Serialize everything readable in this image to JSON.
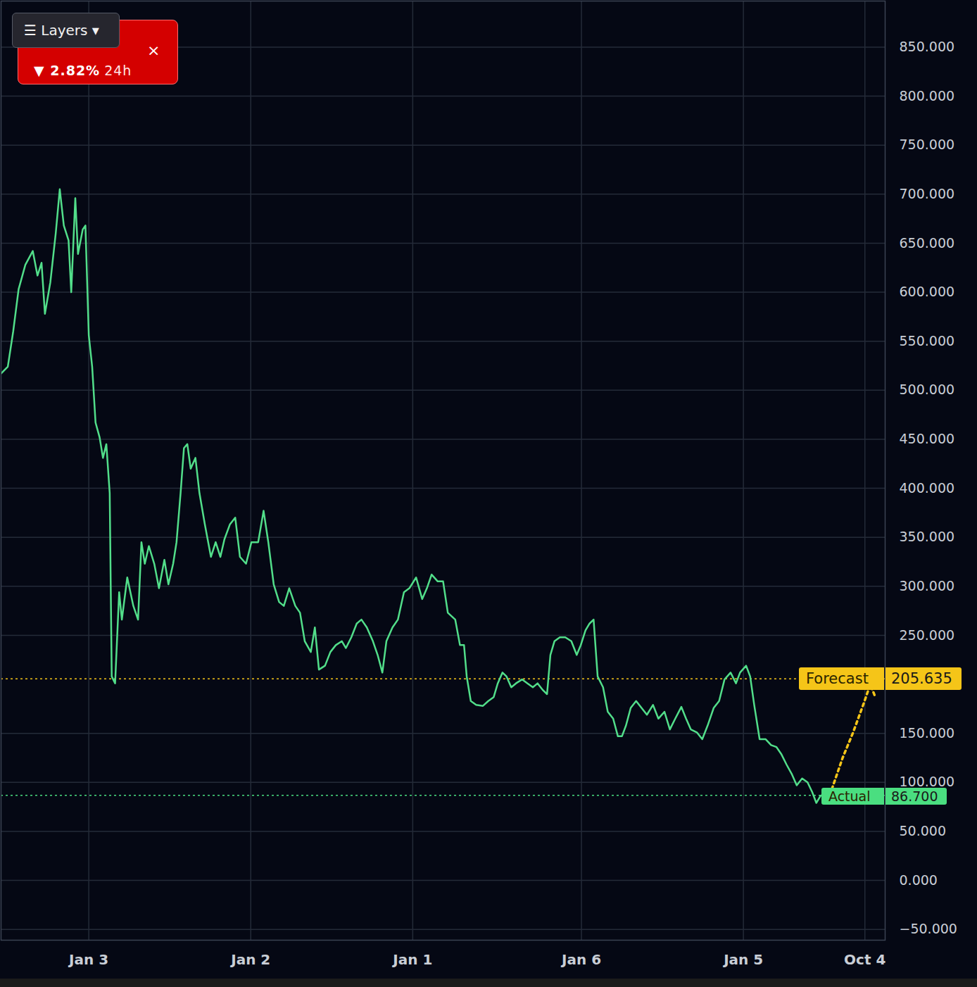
{
  "chart_data": {
    "type": "line",
    "xlim": [
      -13,
      118
    ],
    "xticks": [
      {
        "value": 0,
        "label": "Jan 3"
      },
      {
        "value": 24,
        "label": "Jan 2"
      },
      {
        "value": 48,
        "label": "Jan 1"
      },
      {
        "value": 73,
        "label": "Jan 6"
      },
      {
        "value": 97,
        "label": "Jan 5"
      },
      {
        "value": 115,
        "label": "Oct 4"
      }
    ],
    "ylim": [
      -61,
      897
    ],
    "yticks": [
      {
        "value": -50,
        "label": "−50.000"
      },
      {
        "value": 0,
        "label": "0.000"
      },
      {
        "value": 50,
        "label": "50.000"
      },
      {
        "value": 100,
        "label": "100.000"
      },
      {
        "value": 150,
        "label": "150.000"
      },
      {
        "value": 250,
        "label": "250.000"
      },
      {
        "value": 300,
        "label": "300.000"
      },
      {
        "value": 350,
        "label": "350.000"
      },
      {
        "value": 400,
        "label": "400.000"
      },
      {
        "value": 450,
        "label": "450.000"
      },
      {
        "value": 500,
        "label": "500.000"
      },
      {
        "value": 550,
        "label": "550.000"
      },
      {
        "value": 600,
        "label": "600.000"
      },
      {
        "value": 650,
        "label": "650.000"
      },
      {
        "value": 700,
        "label": "700.000"
      },
      {
        "value": 750,
        "label": "750.000"
      },
      {
        "value": 800,
        "label": "800.000"
      },
      {
        "value": 850,
        "label": "850.000"
      }
    ],
    "grid": true,
    "series": [
      {
        "name": "Actual",
        "color": "#52de8a",
        "line_style": "solid",
        "x": [
          -13.0,
          -12.0,
          -11.2,
          -10.4,
          -9.4,
          -8.3,
          -7.6,
          -7.0,
          -6.5,
          -5.7,
          -4.9,
          -4.3,
          -3.7,
          -3.0,
          -2.6,
          -2.0,
          -1.6,
          -0.9,
          -0.5,
          0,
          0.5,
          1.0,
          1.6,
          2.1,
          2.6,
          3.1,
          3.4,
          3.9,
          4.5,
          4.9,
          5.7,
          6.6,
          7.3,
          7.8,
          8.3,
          8.9,
          9.7,
          10.4,
          11.2,
          11.8,
          12.5,
          13.0,
          13.6,
          14.1,
          14.6,
          15.1,
          15.8,
          16.4,
          17.2,
          18.1,
          18.8,
          19.5,
          20.1,
          20.9,
          21.7,
          22.4,
          23.3,
          24.1,
          25.1,
          25.9,
          26.6,
          27.4,
          28.2,
          28.9,
          29.7,
          30.6,
          31.3,
          32.0,
          32.9,
          33.5,
          34.1,
          35.0,
          35.8,
          36.6,
          37.5,
          38.1,
          38.9,
          39.7,
          40.4,
          41.2,
          42.1,
          42.8,
          43.5,
          44.1,
          45.0,
          45.8,
          46.7,
          47.5,
          48.5,
          49.4,
          50.1,
          50.8,
          51.7,
          52.5,
          53.2,
          54.3,
          55.0,
          55.6,
          56.0,
          56.6,
          57.4,
          58.4,
          59.2,
          60.0,
          60.6,
          61.3,
          61.9,
          62.6,
          63.3,
          64.2,
          65.0,
          65.8,
          66.5,
          67.3,
          67.9,
          68.4,
          69.0,
          69.8,
          70.6,
          71.5,
          72.3,
          72.9,
          73.6,
          74.2,
          74.8,
          75.4,
          76.2,
          76.9,
          77.7,
          78.4,
          79.0,
          79.6,
          80.3,
          81.1,
          81.9,
          82.7,
          83.6,
          84.4,
          85.3,
          86.1,
          86.9,
          87.8,
          88.5,
          89.2,
          90.1,
          90.9,
          91.7,
          92.6,
          93.4,
          94.2,
          95.1,
          95.9,
          96.5,
          97.4,
          98.0,
          98.6,
          99.4,
          100.3,
          101.1,
          101.9,
          102.6,
          103.4,
          104.2,
          104.9,
          105.7,
          106.5,
          107.2,
          107.8,
          108.4,
          109.3,
          110.1
        ],
        "values": [
          517,
          524,
          560,
          603,
          628,
          642,
          617,
          630,
          578,
          610,
          660,
          705,
          668,
          653,
          600,
          696,
          639,
          664,
          668,
          556,
          524,
          467,
          452,
          431,
          445,
          395,
          208,
          201,
          294,
          266,
          309,
          280,
          266,
          345,
          323,
          341,
          323,
          298,
          327,
          302,
          323,
          345,
          395,
          441,
          445,
          420,
          431,
          395,
          363,
          330,
          345,
          330,
          348,
          363,
          370,
          330,
          323,
          345,
          345,
          377,
          345,
          302,
          284,
          280,
          298,
          280,
          273,
          244,
          233,
          258,
          215,
          219,
          233,
          240,
          244,
          237,
          248,
          262,
          266,
          258,
          244,
          230,
          212,
          244,
          258,
          266,
          294,
          298,
          309,
          287,
          298,
          312,
          305,
          305,
          273,
          266,
          240,
          240,
          208,
          183,
          179,
          178,
          183,
          187,
          201,
          212,
          208,
          197,
          201,
          205,
          201,
          197,
          201,
          194,
          190,
          230,
          244,
          248,
          248,
          244,
          230,
          240,
          255,
          262,
          266,
          208,
          197,
          172,
          165,
          147,
          147,
          158,
          176,
          183,
          176,
          169,
          179,
          165,
          172,
          154,
          165,
          177,
          165,
          154,
          151,
          144,
          158,
          176,
          183,
          205,
          212,
          201,
          212,
          219,
          208,
          179,
          144,
          144,
          138,
          136,
          129,
          118,
          108,
          97,
          104,
          100,
          90,
          79,
          86,
          90,
          93
        ]
      },
      {
        "name": "Forecast",
        "color": "#f5c518",
        "line_style": "dotted",
        "x": [
          110.1,
          111.7,
          113.2,
          114.8,
          115.8,
          116.6
        ],
        "values": [
          93,
          125,
          150,
          180,
          200,
          186
        ]
      }
    ],
    "reference_lines": [
      {
        "name": "Forecast",
        "value": 205.635,
        "value_label": "205.635",
        "color": "#f5c518"
      },
      {
        "name": "Actual",
        "value": 86.7,
        "value_label": "86.700",
        "color": "#4ade80"
      }
    ],
    "annotations": {
      "change": "▼ 2.82%",
      "period": "24h",
      "close": "×",
      "button": "☰ Layers ▾"
    }
  }
}
